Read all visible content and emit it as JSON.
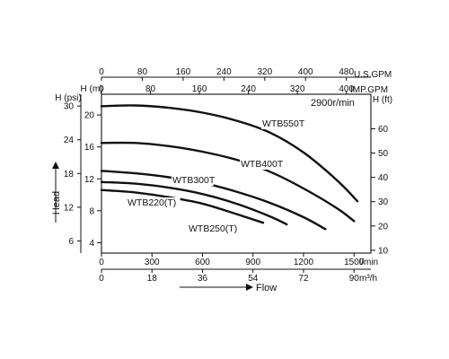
{
  "chart_data": {
    "type": "line",
    "speed_label": "2900r/min",
    "y_axis_title": "Head",
    "x_axis_title": "Flow",
    "axes": {
      "flow_lmin": {
        "unit": "l/min",
        "range": [
          0,
          1600
        ],
        "ticks": [
          0,
          300,
          600,
          900,
          1200,
          1500
        ]
      },
      "flow_m3h": {
        "unit": "m³/h",
        "range": [
          0,
          96
        ],
        "ticks": [
          0,
          18,
          36,
          54,
          72,
          90
        ]
      },
      "flow_usgpm": {
        "unit": "U.S.GPM",
        "range": [
          0,
          528
        ],
        "ticks": [
          0,
          80,
          160,
          240,
          320,
          400,
          480
        ]
      },
      "flow_impgpm": {
        "unit": "IMP.GPM",
        "range": [
          0,
          440
        ],
        "ticks": [
          0,
          80,
          160,
          240,
          320,
          400
        ]
      },
      "head_m": {
        "unit": "H (m)",
        "range": [
          2.7,
          22.6
        ],
        "ticks": [
          4,
          8,
          12,
          16,
          20
        ]
      },
      "head_psi": {
        "unit": "H (psi)",
        "range": [
          3.84,
          32.1
        ],
        "ticks": [
          6,
          12,
          18,
          24,
          30
        ]
      },
      "head_ft": {
        "unit": "H (ft)",
        "range": [
          8.85,
          74.2
        ],
        "ticks": [
          10,
          20,
          30,
          40,
          50,
          60
        ]
      }
    },
    "x_unit": "l/min",
    "y_unit": "m",
    "series": [
      {
        "name": "WTB550T",
        "x": [
          0,
          200,
          400,
          600,
          800,
          1000,
          1200,
          1400,
          1520
        ],
        "y": [
          21.1,
          21.2,
          20.9,
          20.3,
          19.3,
          17.8,
          15.3,
          11.8,
          9.2
        ]
      },
      {
        "name": "WTB400T",
        "x": [
          0,
          200,
          400,
          600,
          800,
          1000,
          1200,
          1400,
          1500
        ],
        "y": [
          16.5,
          16.5,
          16.1,
          15.4,
          14.4,
          12.9,
          10.8,
          8.3,
          6.7
        ]
      },
      {
        "name": "WTB300T",
        "x": [
          0,
          200,
          400,
          600,
          800,
          1000,
          1200,
          1330
        ],
        "y": [
          13.0,
          12.7,
          12.2,
          11.5,
          10.4,
          9.0,
          7.2,
          5.7
        ]
      },
      {
        "name": "WTB250(T)",
        "x": [
          0,
          200,
          400,
          600,
          800,
          1000,
          1100
        ],
        "y": [
          11.6,
          11.4,
          10.9,
          10.1,
          8.9,
          7.3,
          6.3
        ]
      },
      {
        "name": "WTB220(T)",
        "x": [
          0,
          200,
          400,
          600,
          800,
          960
        ],
        "y": [
          10.6,
          10.3,
          9.7,
          8.9,
          7.6,
          6.5
        ]
      }
    ],
    "grid": false,
    "legend": "inline"
  }
}
